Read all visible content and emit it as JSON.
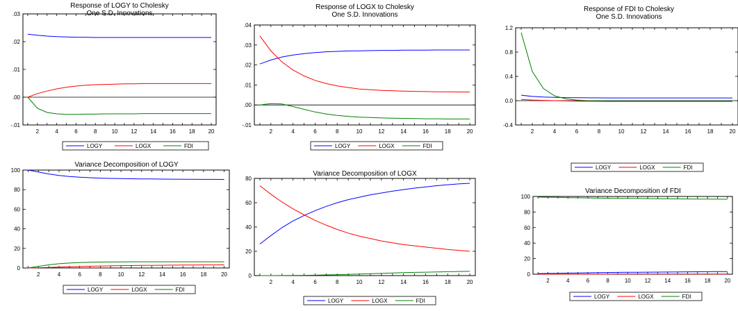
{
  "chart_data": [
    {
      "type": "line",
      "title_lines": [
        "Response of LOGY to Cholesky",
        "One S.D. Innovations"
      ],
      "x": [
        1,
        2,
        3,
        4,
        5,
        6,
        7,
        8,
        9,
        10,
        11,
        12,
        13,
        14,
        15,
        16,
        17,
        18,
        19,
        20
      ],
      "xticks": [
        2,
        4,
        6,
        8,
        10,
        12,
        14,
        16,
        18,
        20
      ],
      "ylim": [
        -0.01,
        0.03
      ],
      "yticks": [
        -0.01,
        0.0,
        0.01,
        0.02,
        0.03
      ],
      "ytick_labels": [
        "-.01",
        ".00",
        ".01",
        ".02",
        ".03"
      ],
      "zero_line": true,
      "series": [
        {
          "name": "LOGY",
          "color": "#0000ff",
          "values": [
            0.0227,
            0.0223,
            0.022,
            0.0218,
            0.0217,
            0.0216,
            0.0216,
            0.0215,
            0.0215,
            0.0215,
            0.0215,
            0.0215,
            0.0215,
            0.0215,
            0.0215,
            0.0215,
            0.0215,
            0.0215,
            0.0215,
            0.0215
          ]
        },
        {
          "name": "LOGX",
          "color": "#ff0000",
          "values": [
            0.0,
            0.0013,
            0.0022,
            0.003,
            0.0036,
            0.004,
            0.0043,
            0.0045,
            0.0046,
            0.0047,
            0.0048,
            0.0048,
            0.0049,
            0.0049,
            0.0049,
            0.0049,
            0.0049,
            0.0049,
            0.0049,
            0.0049
          ]
        },
        {
          "name": "FDI",
          "color": "#008000",
          "values": [
            0.0,
            -0.004,
            -0.0055,
            -0.006,
            -0.0062,
            -0.0062,
            -0.0061,
            -0.0061,
            -0.006,
            -0.006,
            -0.006,
            -0.006,
            -0.0059,
            -0.0059,
            -0.0059,
            -0.0059,
            -0.0059,
            -0.0059,
            -0.0059,
            -0.0059
          ]
        }
      ]
    },
    {
      "type": "line",
      "title_lines": [
        "Response of LOGX to Cholesky",
        "One S.D. Innovations"
      ],
      "x": [
        1,
        2,
        3,
        4,
        5,
        6,
        7,
        8,
        9,
        10,
        11,
        12,
        13,
        14,
        15,
        16,
        17,
        18,
        19,
        20
      ],
      "xticks": [
        2,
        4,
        6,
        8,
        10,
        12,
        14,
        16,
        18,
        20
      ],
      "ylim": [
        -0.01,
        0.04
      ],
      "yticks": [
        -0.01,
        0.0,
        0.01,
        0.02,
        0.03,
        0.04
      ],
      "ytick_labels": [
        "-.01",
        ".00",
        ".01",
        ".02",
        ".03",
        ".04"
      ],
      "zero_line": true,
      "series": [
        {
          "name": "LOGY",
          "color": "#0000ff",
          "values": [
            0.0205,
            0.0225,
            0.024,
            0.025,
            0.0257,
            0.0262,
            0.0266,
            0.0268,
            0.027,
            0.0271,
            0.0272,
            0.0273,
            0.0273,
            0.0274,
            0.0274,
            0.0274,
            0.0275,
            0.0275,
            0.0275,
            0.0275
          ]
        },
        {
          "name": "LOGX",
          "color": "#ff0000",
          "values": [
            0.0345,
            0.027,
            0.0215,
            0.0175,
            0.0145,
            0.0123,
            0.0107,
            0.0095,
            0.0087,
            0.008,
            0.0076,
            0.0073,
            0.0071,
            0.0069,
            0.0068,
            0.0067,
            0.0066,
            0.0066,
            0.0065,
            0.0065
          ]
        },
        {
          "name": "FDI",
          "color": "#008000",
          "values": [
            0.0,
            0.0007,
            0.0005,
            -0.0008,
            -0.0022,
            -0.0035,
            -0.0045,
            -0.0052,
            -0.0057,
            -0.0061,
            -0.0063,
            -0.0065,
            -0.0066,
            -0.0067,
            -0.0068,
            -0.0069,
            -0.0069,
            -0.007,
            -0.007,
            -0.007
          ]
        }
      ]
    },
    {
      "type": "line",
      "title_lines": [
        "Response of FDI to Cholesky",
        "One S.D. Innovations"
      ],
      "x": [
        1,
        2,
        3,
        4,
        5,
        6,
        7,
        8,
        9,
        10,
        11,
        12,
        13,
        14,
        15,
        16,
        17,
        18,
        19,
        20
      ],
      "xticks": [
        2,
        4,
        6,
        8,
        10,
        12,
        14,
        16,
        18,
        20
      ],
      "ylim": [
        -0.4,
        1.2
      ],
      "yticks": [
        -0.4,
        0.0,
        0.4,
        0.8,
        1.2
      ],
      "ytick_labels": [
        "-0.4",
        "0.0",
        "0.4",
        "0.8",
        "1.2"
      ],
      "zero_line": true,
      "series": [
        {
          "name": "LOGY",
          "color": "#0000ff",
          "values": [
            0.09,
            0.07,
            0.06,
            0.055,
            0.05,
            0.048,
            0.047,
            0.046,
            0.045,
            0.045,
            0.045,
            0.045,
            0.045,
            0.045,
            0.045,
            0.045,
            0.045,
            0.045,
            0.045,
            0.045
          ]
        },
        {
          "name": "LOGX",
          "color": "#ff0000",
          "values": [
            0.02,
            0.01,
            0.005,
            0.0,
            -0.005,
            -0.008,
            -0.01,
            -0.011,
            -0.012,
            -0.012,
            -0.012,
            -0.012,
            -0.012,
            -0.012,
            -0.012,
            -0.012,
            -0.012,
            -0.012,
            -0.012,
            -0.012
          ]
        },
        {
          "name": "FDI",
          "color": "#008000",
          "values": [
            1.12,
            0.48,
            0.2,
            0.08,
            0.03,
            0.01,
            0.0,
            -0.005,
            -0.008,
            -0.01,
            -0.01,
            -0.01,
            -0.01,
            -0.01,
            -0.01,
            -0.01,
            -0.01,
            -0.01,
            -0.01,
            -0.01
          ]
        }
      ]
    },
    {
      "type": "line",
      "title_lines": [
        "Variance Decomposition of LOGY"
      ],
      "x": [
        1,
        2,
        3,
        4,
        5,
        6,
        7,
        8,
        9,
        10,
        11,
        12,
        13,
        14,
        15,
        16,
        17,
        18,
        19,
        20
      ],
      "xticks": [
        2,
        4,
        6,
        8,
        10,
        12,
        14,
        16,
        18,
        20
      ],
      "ylim": [
        0,
        100
      ],
      "yticks": [
        0,
        20,
        40,
        60,
        80,
        100
      ],
      "ytick_labels": [
        "0",
        "20",
        "40",
        "60",
        "80",
        "100"
      ],
      "zero_line": false,
      "series": [
        {
          "name": "LOGY",
          "color": "#0000ff",
          "values": [
            100,
            98,
            96,
            94.5,
            93.5,
            92.8,
            92.2,
            91.8,
            91.5,
            91.3,
            91.1,
            91.0,
            90.9,
            90.8,
            90.7,
            90.6,
            90.6,
            90.5,
            90.5,
            90.4
          ]
        },
        {
          "name": "LOGX",
          "color": "#ff0000",
          "values": [
            0,
            0.3,
            0.6,
            0.9,
            1.2,
            1.5,
            1.8,
            2.0,
            2.2,
            2.4,
            2.5,
            2.6,
            2.7,
            2.8,
            2.9,
            3.0,
            3.0,
            3.1,
            3.1,
            3.2
          ]
        },
        {
          "name": "FDI",
          "color": "#008000",
          "values": [
            0,
            1.7,
            3.2,
            4.3,
            5.0,
            5.5,
            5.8,
            6.0,
            6.1,
            6.2,
            6.3,
            6.3,
            6.3,
            6.3,
            6.3,
            6.3,
            6.3,
            6.3,
            6.3,
            6.3
          ]
        }
      ]
    },
    {
      "type": "line",
      "title_lines": [
        "Variance Decomposition of LOGX"
      ],
      "x": [
        1,
        2,
        3,
        4,
        5,
        6,
        7,
        8,
        9,
        10,
        11,
        12,
        13,
        14,
        15,
        16,
        17,
        18,
        19,
        20
      ],
      "xticks": [
        2,
        4,
        6,
        8,
        10,
        12,
        14,
        16,
        18,
        20
      ],
      "ylim": [
        0,
        80
      ],
      "yticks": [
        0,
        20,
        40,
        60,
        80
      ],
      "ytick_labels": [
        "0",
        "20",
        "40",
        "60",
        "80"
      ],
      "zero_line": false,
      "series": [
        {
          "name": "LOGY",
          "color": "#0000ff",
          "values": [
            26,
            33,
            39.5,
            45,
            49.5,
            53.5,
            57,
            60,
            62.5,
            64.5,
            66.5,
            68,
            69.5,
            70.8,
            72,
            73,
            74,
            74.8,
            75.5,
            76
          ]
        },
        {
          "name": "LOGX",
          "color": "#ff0000",
          "values": [
            74,
            67,
            60.5,
            55,
            50,
            45.5,
            41.5,
            38,
            35,
            32.5,
            30.5,
            28.5,
            27,
            25.5,
            24.5,
            23.5,
            22.5,
            21.5,
            20.8,
            20
          ]
        },
        {
          "name": "FDI",
          "color": "#008000",
          "values": [
            0,
            0.02,
            0.05,
            0.1,
            0.2,
            0.35,
            0.55,
            0.8,
            1.0,
            1.3,
            1.6,
            1.9,
            2.1,
            2.4,
            2.6,
            2.8,
            3.0,
            3.2,
            3.4,
            3.6
          ]
        }
      ]
    },
    {
      "type": "line",
      "title_lines": [
        "Variance Decomposition of FDI"
      ],
      "x": [
        1,
        2,
        3,
        4,
        5,
        6,
        7,
        8,
        9,
        10,
        11,
        12,
        13,
        14,
        15,
        16,
        17,
        18,
        19,
        20
      ],
      "xticks": [
        2,
        4,
        6,
        8,
        10,
        12,
        14,
        16,
        18,
        20
      ],
      "ylim": [
        0,
        100
      ],
      "yticks": [
        0,
        20,
        40,
        60,
        80,
        100
      ],
      "ytick_labels": [
        "0",
        "20",
        "40",
        "60",
        "80",
        "100"
      ],
      "zero_line": false,
      "series": [
        {
          "name": "LOGY",
          "color": "#0000ff",
          "values": [
            0.8,
            1.0,
            1.2,
            1.4,
            1.6,
            1.8,
            2.0,
            2.1,
            2.3,
            2.4,
            2.5,
            2.6,
            2.7,
            2.8,
            2.9,
            3.0,
            3.1,
            3.2,
            3.3,
            3.4
          ]
        },
        {
          "name": "LOGX",
          "color": "#ff0000",
          "values": [
            0.0,
            0.03,
            0.05,
            0.07,
            0.09,
            0.1,
            0.12,
            0.13,
            0.14,
            0.15,
            0.16,
            0.17,
            0.18,
            0.19,
            0.2,
            0.2,
            0.21,
            0.21,
            0.22,
            0.22
          ]
        },
        {
          "name": "FDI",
          "color": "#008000",
          "values": [
            99.2,
            99.0,
            98.8,
            98.5,
            98.3,
            98.1,
            97.9,
            97.8,
            97.6,
            97.5,
            97.4,
            97.2,
            97.1,
            97.0,
            96.9,
            96.8,
            96.7,
            96.6,
            96.5,
            96.4
          ]
        }
      ]
    }
  ],
  "legend_items": [
    {
      "label": "LOGY",
      "color": "#0000ff"
    },
    {
      "label": "LOGX",
      "color": "#ff0000"
    },
    {
      "label": "FDI",
      "color": "#008000"
    }
  ]
}
